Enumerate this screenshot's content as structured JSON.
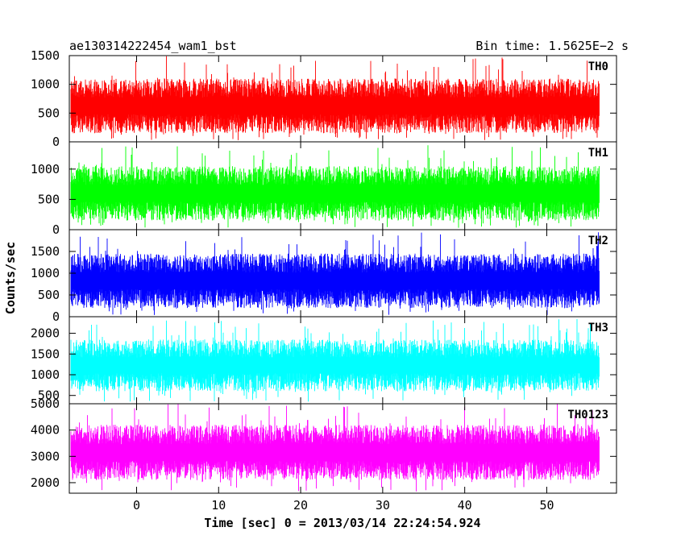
{
  "header": {
    "left": "ae130314222454_wam1_bst",
    "right": "Bin time: 1.5625E−2 s"
  },
  "chart_data": {
    "type": "line",
    "xlabel": "Time [sec] 0 = 2013/03/14 22:24:54.924",
    "ylabel": "Counts/sec",
    "xlim": [
      -8.2,
      58.5
    ],
    "x_ticks": [
      0,
      10,
      20,
      30,
      40,
      50
    ],
    "x_data_range": [
      -8.0,
      56.4
    ],
    "bin_time_s": 0.015625,
    "panels": [
      {
        "name": "TH0",
        "color": "#ff0000",
        "ylim": [
          0,
          1500
        ],
        "y_ticks": [
          0,
          500,
          1000,
          1500
        ],
        "typical_range": [
          150,
          1100
        ],
        "peak_max": 1500,
        "trough_min": 30
      },
      {
        "name": "TH1",
        "color": "#00ff00",
        "ylim": [
          0,
          1450
        ],
        "y_ticks": [
          0,
          500,
          1000
        ],
        "typical_range": [
          150,
          1050
        ],
        "peak_max": 1400,
        "trough_min": 30
      },
      {
        "name": "TH2",
        "color": "#0000ff",
        "ylim": [
          0,
          2000
        ],
        "y_ticks": [
          0,
          500,
          1000,
          1500
        ],
        "typical_range": [
          200,
          1450
        ],
        "peak_max": 1950,
        "trough_min": 20
      },
      {
        "name": "TH3",
        "color": "#00ffff",
        "ylim": [
          300,
          2400
        ],
        "y_ticks": [
          500,
          1000,
          1500,
          2000
        ],
        "typical_range": [
          600,
          1850
        ],
        "peak_max": 2350,
        "trough_min": 350
      },
      {
        "name": "TH0123",
        "color": "#ff00ff",
        "ylim": [
          1600,
          5000
        ],
        "y_ticks": [
          2000,
          3000,
          4000,
          5000
        ],
        "typical_range": [
          2100,
          4200
        ],
        "peak_max": 5000,
        "trough_min": 1650
      }
    ]
  }
}
